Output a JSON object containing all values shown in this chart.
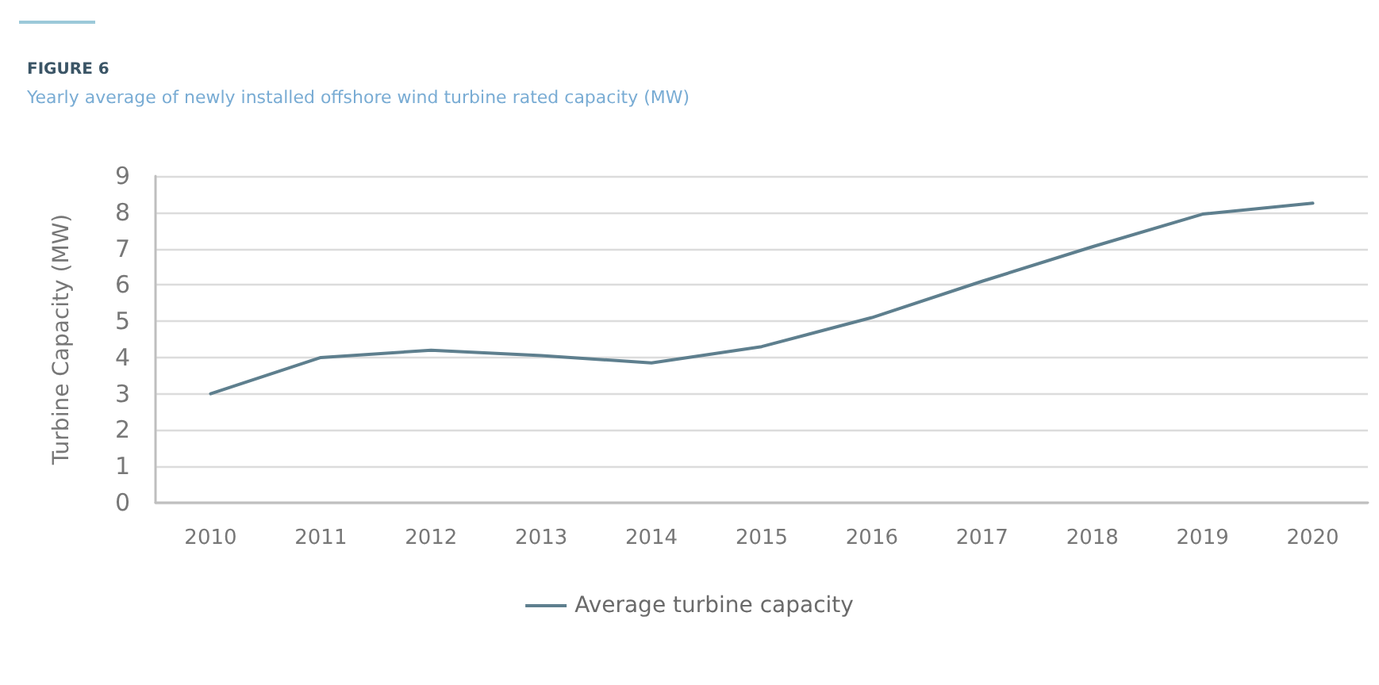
{
  "chart_data": {
    "type": "line",
    "title": "FIGURE 6",
    "subtitle": "Yearly average of newly installed offshore wind turbine rated capacity (MW)",
    "ylabel": "Turbine Capacity (MW)",
    "categories": [
      "2010",
      "2011",
      "2012",
      "2013",
      "2014",
      "2015",
      "2016",
      "2017",
      "2018",
      "2019",
      "2020"
    ],
    "series": [
      {
        "name": "Average turbine capacity",
        "color": "#5e7f8e",
        "values": [
          3.0,
          4.0,
          4.2,
          4.05,
          3.85,
          4.3,
          5.1,
          6.1,
          7.05,
          7.95,
          8.25
        ]
      }
    ],
    "ylim": [
      0,
      9
    ],
    "yticks": [
      0,
      1,
      2,
      3,
      4,
      5,
      6,
      7,
      8,
      9
    ],
    "grid": "y",
    "legend": "bottom",
    "marker": "none",
    "line_style": "solid"
  }
}
